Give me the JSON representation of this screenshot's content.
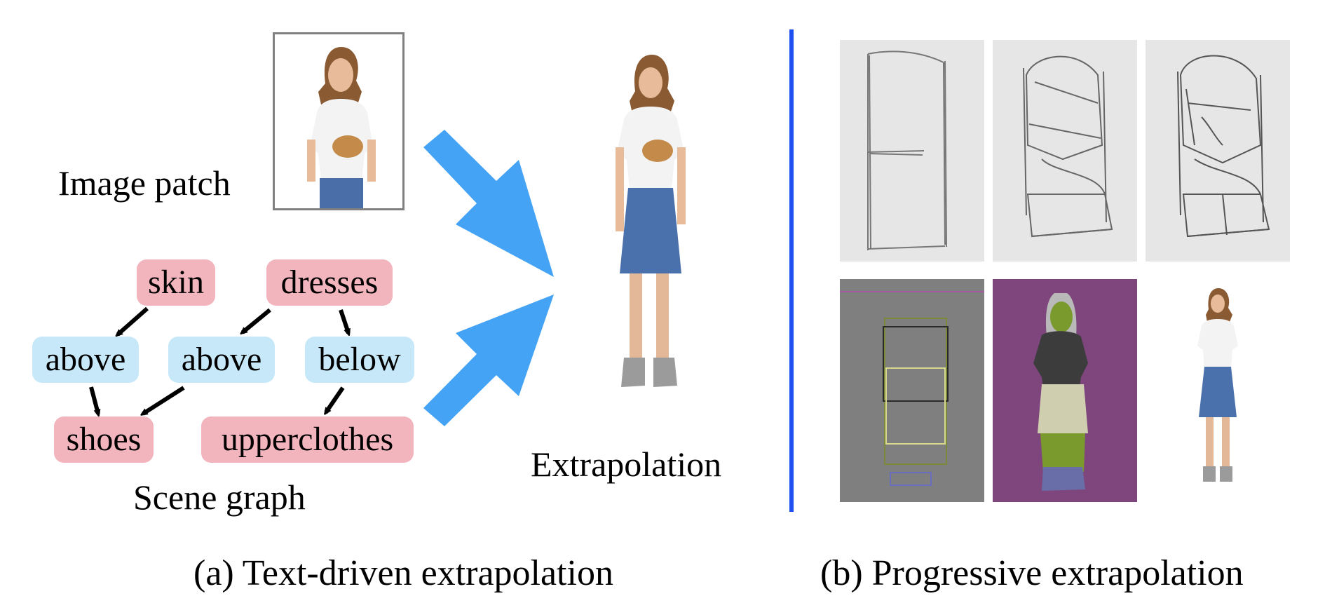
{
  "left": {
    "image_patch_label": "Image patch",
    "extrapolation_label": "Extrapolation",
    "scene_graph_label": "Scene graph",
    "caption": "(a) Text-driven extrapolation",
    "scene_graph": {
      "nodes": [
        {
          "id": "skin",
          "label": "skin",
          "kind": "object"
        },
        {
          "id": "dresses",
          "label": "dresses",
          "kind": "object"
        },
        {
          "id": "above1",
          "label": "above",
          "kind": "relation"
        },
        {
          "id": "above2",
          "label": "above",
          "kind": "relation"
        },
        {
          "id": "below",
          "label": "below",
          "kind": "relation"
        },
        {
          "id": "shoes",
          "label": "shoes",
          "kind": "object"
        },
        {
          "id": "upperclothes",
          "label": "upperclothes",
          "kind": "object"
        }
      ],
      "edges": [
        [
          "skin",
          "above1"
        ],
        [
          "above1",
          "shoes"
        ],
        [
          "dresses",
          "above2"
        ],
        [
          "above2",
          "shoes"
        ],
        [
          "dresses",
          "below"
        ],
        [
          "below",
          "upperclothes"
        ]
      ]
    }
  },
  "right": {
    "caption": "(b) Progressive extrapolation",
    "colors": {
      "divider": "#1e4ff0",
      "arrow": "#44a3f5",
      "layout_bg": "#7f7f7f",
      "segmentation_bg": "#7e467c",
      "seg_hair": "#b9b9b9",
      "seg_skin": "#7a9a2e",
      "seg_top": "#3c3c3c",
      "seg_skirt": "#cfcfb0",
      "seg_shoes": "#6a6ea8"
    }
  }
}
